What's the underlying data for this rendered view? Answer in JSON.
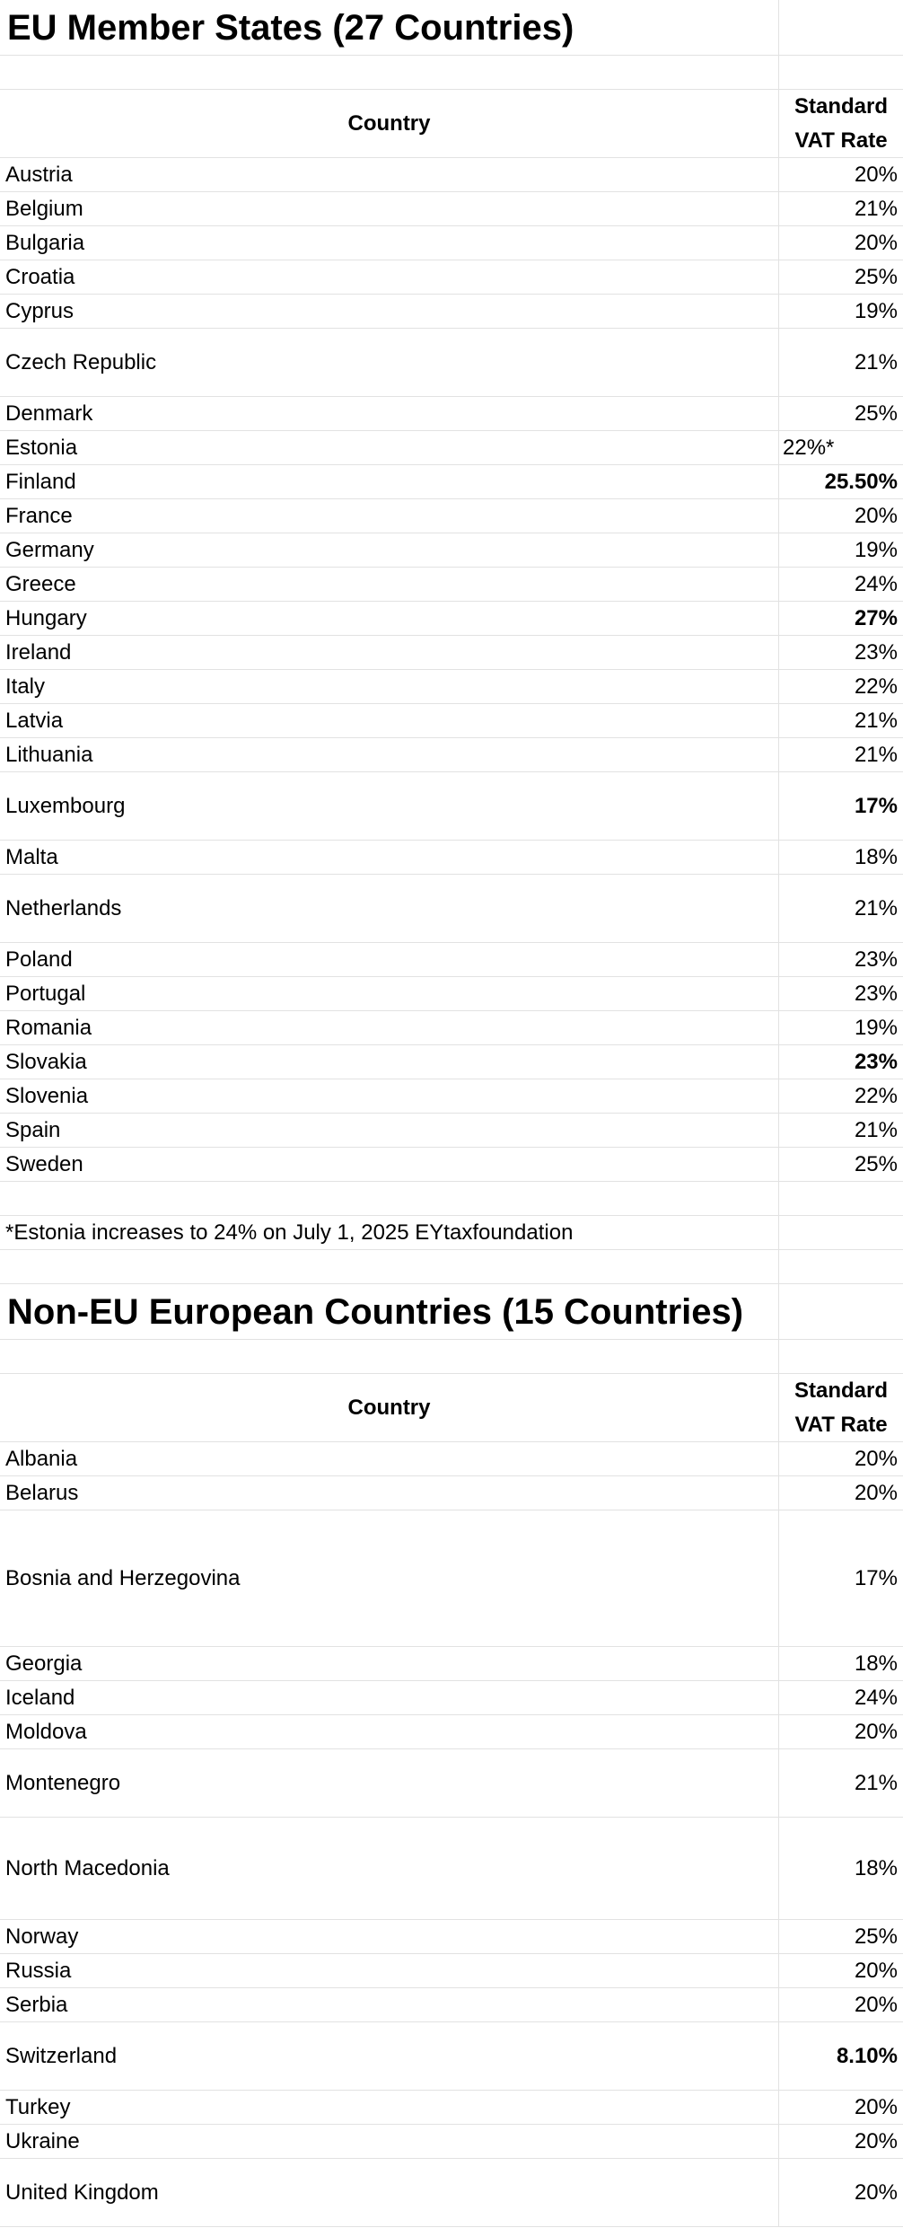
{
  "sections": [
    {
      "title": "EU Member States (27 Countries)",
      "header": {
        "country": "Country",
        "rate_line1": "Standard",
        "rate_line2": "VAT Rate"
      },
      "rows": [
        {
          "country": "Austria",
          "rate": "20%"
        },
        {
          "country": "Belgium",
          "rate": "21%"
        },
        {
          "country": "Bulgaria",
          "rate": "20%"
        },
        {
          "country": "Croatia",
          "rate": "25%"
        },
        {
          "country": "Cyprus",
          "rate": "19%"
        },
        {
          "country": "Czech Republic",
          "rate": "21%",
          "tall": 2
        },
        {
          "country": "Denmark",
          "rate": "25%"
        },
        {
          "country": "Estonia",
          "rate": "22%*",
          "align": "left"
        },
        {
          "country": "Finland",
          "rate": "25.50%",
          "bold": true
        },
        {
          "country": "France",
          "rate": "20%"
        },
        {
          "country": "Germany",
          "rate": "19%"
        },
        {
          "country": "Greece",
          "rate": "24%"
        },
        {
          "country": "Hungary",
          "rate": "27%",
          "bold": true
        },
        {
          "country": "Ireland",
          "rate": "23%"
        },
        {
          "country": "Italy",
          "rate": "22%"
        },
        {
          "country": "Latvia",
          "rate": "21%"
        },
        {
          "country": "Lithuania",
          "rate": "21%"
        },
        {
          "country": "Luxembourg",
          "rate": "17%",
          "bold": true,
          "tall": 2
        },
        {
          "country": "Malta",
          "rate": "18%"
        },
        {
          "country": "Netherlands",
          "rate": "21%",
          "tall": 2
        },
        {
          "country": "Poland",
          "rate": "23%"
        },
        {
          "country": "Portugal",
          "rate": "23%"
        },
        {
          "country": "Romania",
          "rate": "19%"
        },
        {
          "country": "Slovakia",
          "rate": "23%",
          "bold": true
        },
        {
          "country": "Slovenia",
          "rate": "22%"
        },
        {
          "country": "Spain",
          "rate": "21%"
        },
        {
          "country": "Sweden",
          "rate": "25%"
        }
      ],
      "note": "*Estonia increases to 24% on July 1, 2025 EYtaxfoundation"
    },
    {
      "title": "Non-EU European Countries (15 Countries)",
      "header": {
        "country": "Country",
        "rate_line1": "Standard",
        "rate_line2": "VAT Rate"
      },
      "rows": [
        {
          "country": "Albania",
          "rate": "20%"
        },
        {
          "country": "Belarus",
          "rate": "20%"
        },
        {
          "country": "Bosnia and Herzegovina",
          "rate": "17%",
          "tall": 4
        },
        {
          "country": "Georgia",
          "rate": "18%"
        },
        {
          "country": "Iceland",
          "rate": "24%"
        },
        {
          "country": "Moldova",
          "rate": "20%"
        },
        {
          "country": "Montenegro",
          "rate": "21%",
          "tall": 2
        },
        {
          "country": "North Macedonia",
          "rate": "18%",
          "tall": 3
        },
        {
          "country": "Norway",
          "rate": "25%"
        },
        {
          "country": "Russia",
          "rate": "20%"
        },
        {
          "country": "Serbia",
          "rate": "20%"
        },
        {
          "country": "Switzerland",
          "rate": "8.10%",
          "bold": true,
          "tall": 2
        },
        {
          "country": "Turkey",
          "rate": "20%"
        },
        {
          "country": "Ukraine",
          "rate": "20%"
        },
        {
          "country": "United Kingdom",
          "rate": "20%",
          "tall": 2
        }
      ]
    }
  ]
}
